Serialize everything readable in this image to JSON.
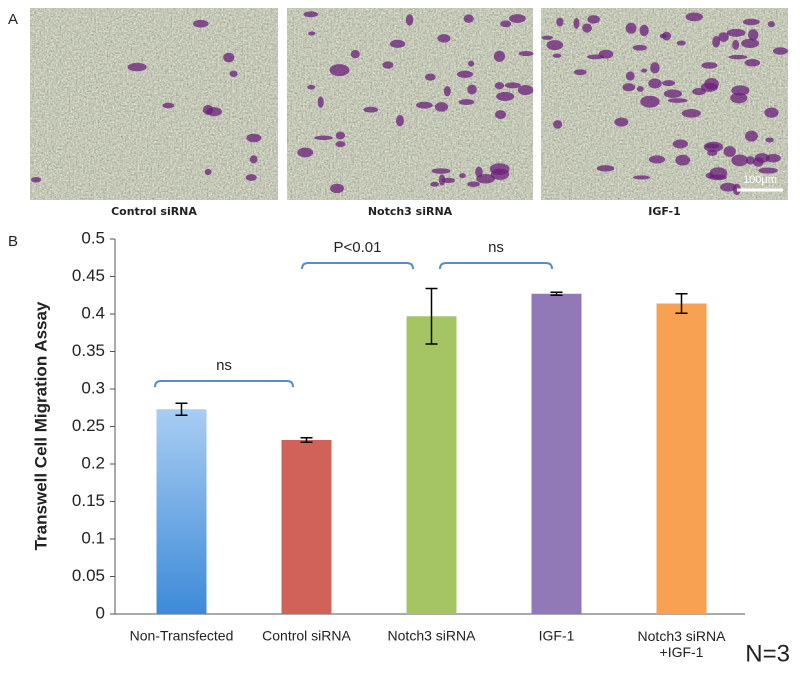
{
  "panel_labels": [
    "A",
    "B"
  ],
  "images": [
    {
      "caption": "Control siRNA"
    },
    {
      "caption": "Notch3 siRNA"
    },
    {
      "caption": "IGF-1"
    }
  ],
  "scale_bar": "100μm",
  "chart_data": {
    "type": "bar",
    "y_label": "Transwell Cell Migration Assay",
    "categories": [
      "Non-Transfected",
      "Control siRNA",
      "Notch3 siRNA",
      "IGF-1",
      "Notch3 siRNA\n+IGF-1"
    ],
    "values": [
      0.273,
      0.232,
      0.397,
      0.427,
      0.414
    ],
    "errors": [
      0.008,
      0.003,
      0.037,
      0.002,
      0.013
    ],
    "colors": [
      "#6fa8e0",
      "#d0625a",
      "#a5c565",
      "#9179b7",
      "#f9a152"
    ],
    "ylim": [
      0,
      0.5
    ],
    "yticks": [
      0,
      0.05,
      0.1,
      0.15,
      0.2,
      0.25,
      0.3,
      0.35,
      0.4,
      0.45,
      0.5
    ],
    "annotations": [
      {
        "text": "ns"
      },
      {
        "text": "P<0.01"
      },
      {
        "text": "ns"
      }
    ],
    "note": "N=3"
  }
}
